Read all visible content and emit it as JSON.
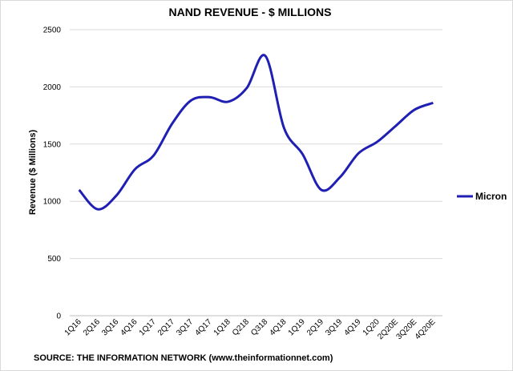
{
  "chart_data": {
    "type": "line",
    "title": "NAND REVENUE - $ MILLIONS",
    "ylabel": "Revenue ($ Millions)",
    "xlabel": "",
    "ylim": [
      0,
      2500
    ],
    "yticks": [
      0,
      500,
      1000,
      1500,
      2000,
      2500
    ],
    "grid": "horizontal",
    "legend_position": "right",
    "categories": [
      "1Q16",
      "2Q16",
      "3Q16",
      "4Q16",
      "1Q17",
      "2Q17",
      "3Q17",
      "4Q17",
      "1Q18",
      "Q218",
      "Q318",
      "4Q18",
      "1Q19",
      "2Q19",
      "3Q19",
      "4Q19",
      "1Q20",
      "2Q20E",
      "3Q20E",
      "4Q20E"
    ],
    "series": [
      {
        "name": "Micron",
        "color": "#1f1fb4",
        "values": [
          1100,
          930,
          1050,
          1280,
          1400,
          1680,
          1880,
          1910,
          1870,
          1990,
          2270,
          1640,
          1410,
          1100,
          1210,
          1420,
          1520,
          1660,
          1800,
          1860
        ]
      }
    ],
    "source": "SOURCE: THE INFORMATION NETWORK (www.theinformationnet.com)"
  }
}
